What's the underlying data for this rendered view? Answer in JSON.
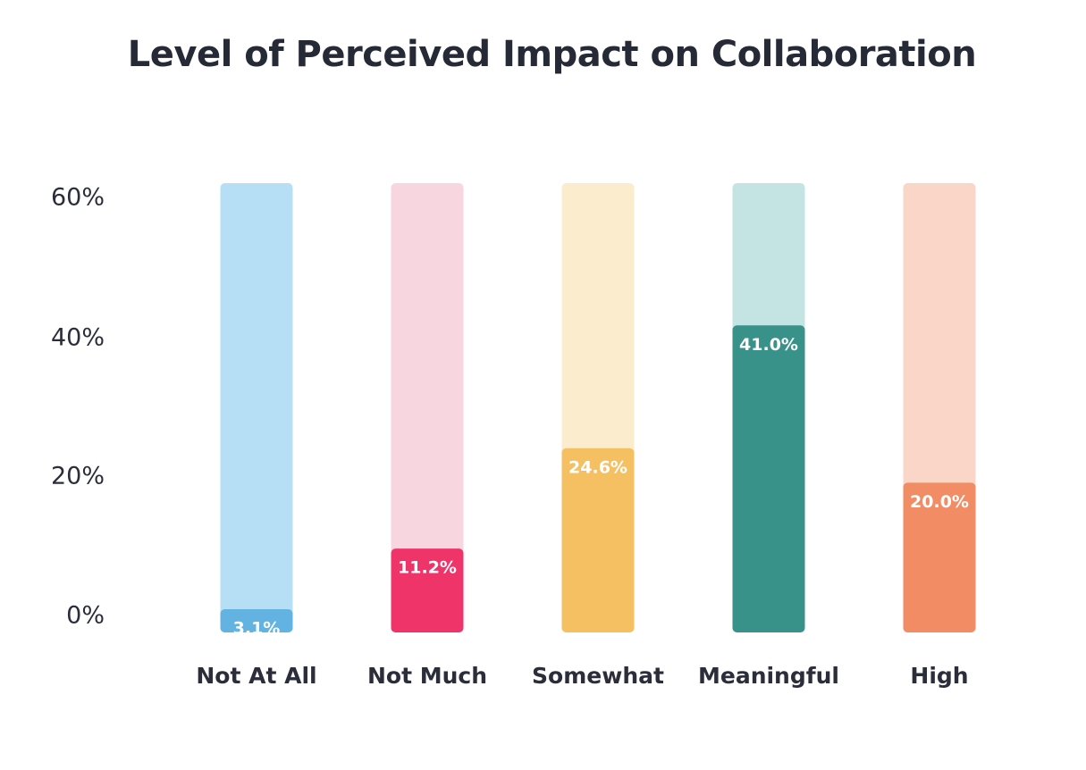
{
  "chart_data": {
    "type": "bar",
    "title": "Level of Perceived Impact on Collaboration",
    "xlabel": "",
    "ylabel": "",
    "categories": [
      "Not At All",
      "Not Much",
      "Somewhat",
      "Meaningful",
      "High"
    ],
    "values": [
      3.1,
      11.2,
      24.6,
      41.0,
      20.0
    ],
    "data_labels": [
      "3.1%",
      "11.2%",
      "24.6%",
      "41.0%",
      "20.0%"
    ],
    "ylim": [
      0,
      60
    ],
    "y_ticks": [
      0,
      20,
      40,
      60
    ],
    "y_tick_labels": [
      "0%",
      "20%",
      "40%",
      "60%"
    ],
    "background_track": true,
    "grid": false,
    "legend": "none",
    "colors": {
      "fill": [
        "#63b3e2",
        "#ee3469",
        "#f5c061",
        "#39928a",
        "#f18c65"
      ],
      "track": [
        "#b6dff5",
        "#f8d6e0",
        "#fbecce",
        "#c3e4e2",
        "#f9d6c8"
      ]
    }
  }
}
